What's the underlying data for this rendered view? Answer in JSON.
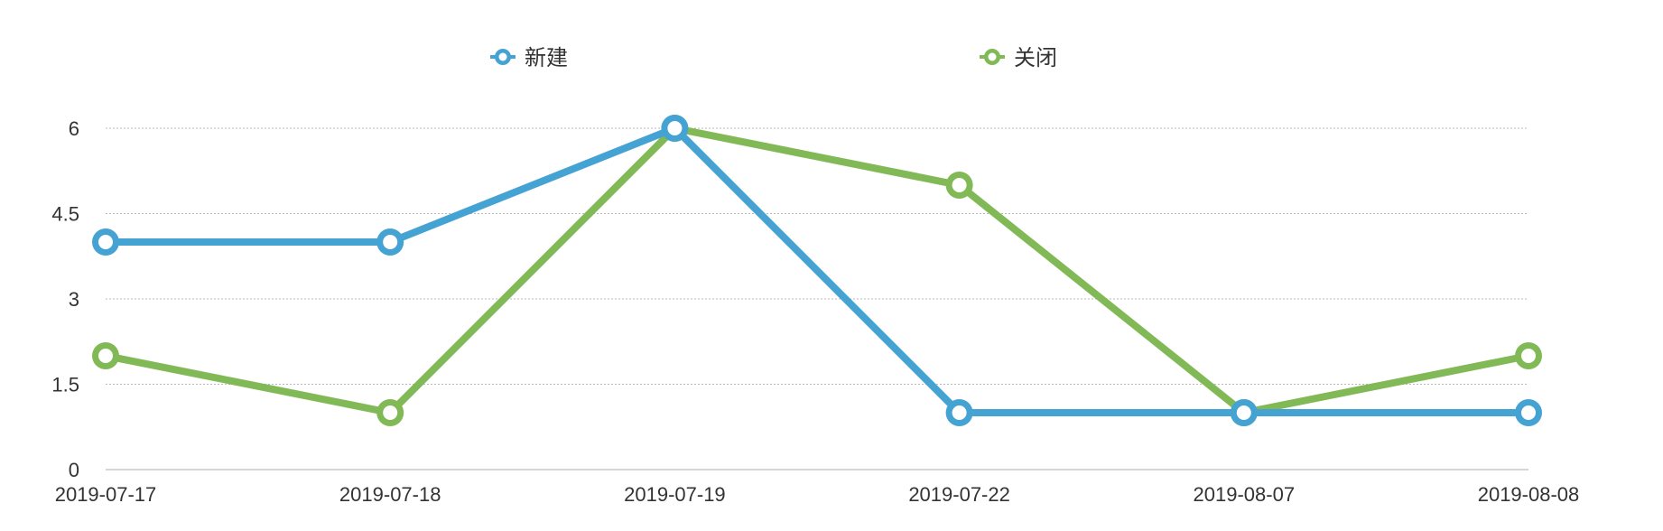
{
  "chart_data": {
    "type": "line",
    "categories": [
      "2019-07-17",
      "2019-07-18",
      "2019-07-19",
      "2019-07-22",
      "2019-08-07",
      "2019-08-08"
    ],
    "series": [
      {
        "name": "新建",
        "color": "#45a3d4",
        "values": [
          4,
          4,
          6,
          1,
          1,
          1
        ]
      },
      {
        "name": "关闭",
        "color": "#82b957",
        "values": [
          2,
          1,
          6,
          5,
          1,
          2
        ]
      }
    ],
    "yticks": [
      "0",
      "1.5",
      "3",
      "4.5",
      "6"
    ],
    "ylim": [
      0,
      6
    ],
    "grid": true,
    "legend": "top-center"
  }
}
